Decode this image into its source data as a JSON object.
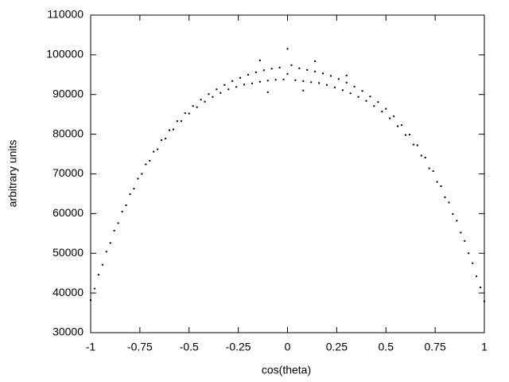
{
  "chart_data": {
    "type": "scatter",
    "x_label": "cos(theta)",
    "y_label": "arbitrary units",
    "color": "#000000",
    "xlim": [
      -1,
      1
    ],
    "ylim": [
      30000,
      110000
    ],
    "xticks": [
      -1,
      -0.75,
      -0.5,
      -0.25,
      0,
      0.25,
      0.5,
      0.75,
      1
    ],
    "yticks": [
      30000,
      40000,
      50000,
      60000,
      70000,
      80000,
      90000,
      100000,
      110000
    ],
    "x": [
      -1,
      -0.98,
      -0.96,
      -0.94,
      -0.92,
      -0.9,
      -0.88,
      -0.86,
      -0.84,
      -0.82,
      -0.8,
      -0.78,
      -0.76,
      -0.74,
      -0.72,
      -0.7,
      -0.68,
      -0.66,
      -0.64,
      -0.62,
      -0.6,
      -0.58,
      -0.56,
      -0.54,
      -0.52,
      -0.5,
      -0.48,
      -0.46,
      -0.44,
      -0.42,
      -0.4,
      -0.38,
      -0.36,
      -0.34,
      -0.32,
      -0.3,
      -0.28,
      -0.26,
      -0.24,
      -0.22,
      -0.2,
      -0.18,
      -0.16,
      -0.14,
      -0.12,
      -0.1,
      -0.08,
      -0.06,
      -0.04,
      -0.02,
      0,
      0.02,
      0.04,
      0.06,
      0.08,
      0.1,
      0.12,
      0.14,
      0.16,
      0.18,
      0.2,
      0.22,
      0.24,
      0.26,
      0.28,
      0.3,
      0.32,
      0.34,
      0.36,
      0.38,
      0.4,
      0.42,
      0.44,
      0.46,
      0.48,
      0.5,
      0.52,
      0.54,
      0.56,
      0.58,
      0.6,
      0.62,
      0.64,
      0.66,
      0.68,
      0.7,
      0.72,
      0.74,
      0.76,
      0.78,
      0.8,
      0.82,
      0.84,
      0.86,
      0.88,
      0.9,
      0.92,
      0.94,
      0.96,
      0.98,
      1,
      0,
      -0.14,
      0.14,
      0.3,
      -0.1,
      0.08
    ],
    "y": [
      38200,
      41100,
      44600,
      47100,
      50400,
      52600,
      55700,
      57600,
      60500,
      62100,
      64900,
      66300,
      68800,
      70000,
      72400,
      73300,
      75600,
      76200,
      78500,
      78900,
      81000,
      81200,
      83300,
      83300,
      85300,
      85200,
      87100,
      86800,
      88700,
      88200,
      90100,
      89400,
      91300,
      90400,
      92400,
      91300,
      93400,
      91900,
      94200,
      92500,
      95000,
      92800,
      95600,
      93200,
      96100,
      93500,
      96500,
      93700,
      96800,
      93800,
      95200,
      97400,
      93600,
      96600,
      93400,
      96200,
      93100,
      95800,
      92900,
      95300,
      92400,
      94700,
      91800,
      93900,
      91100,
      93000,
      90300,
      92000,
      89400,
      90900,
      88400,
      89500,
      87100,
      88100,
      85700,
      86400,
      84000,
      84500,
      82000,
      82300,
      79800,
      79900,
      77400,
      77200,
      74600,
      74100,
      71400,
      70700,
      68000,
      66900,
      64100,
      62800,
      59900,
      58200,
      55200,
      53100,
      50000,
      47500,
      44200,
      41400,
      37900,
      101500,
      98600,
      98400,
      94800,
      90600,
      91000
    ]
  }
}
